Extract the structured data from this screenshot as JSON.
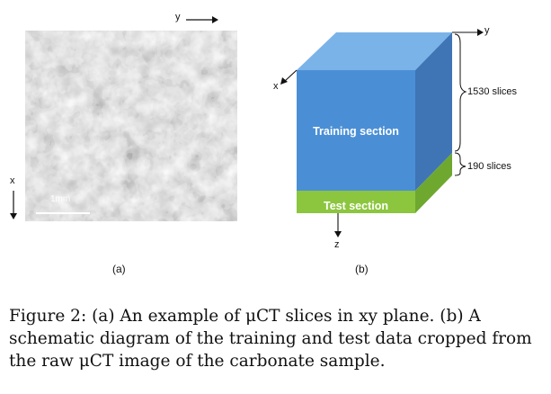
{
  "panel_a": {
    "axis_x": "x",
    "axis_y": "y",
    "scale_bar": "1mm",
    "label": "(a)"
  },
  "panel_b": {
    "training_label": "Training section",
    "test_label": "Test section",
    "axis_x": "x",
    "axis_y": "y",
    "axis_z": "z",
    "training_slices": "1530 slices",
    "test_slices": "190 slices",
    "label": "(b)"
  },
  "caption": {
    "lines": [
      "Figure 2: (a) An example of μCT slices in xy plane. (b) A",
      "schematic diagram of the training and test data cropped from",
      "the raw μCT image of the carbonate sample."
    ]
  },
  "colors": {
    "front_blue": "#4a8fd6",
    "top_blue": "#7ab3e8",
    "side_blue": "#3f75b5",
    "front_green": "#8cc63f",
    "side_green": "#6ea82f"
  }
}
